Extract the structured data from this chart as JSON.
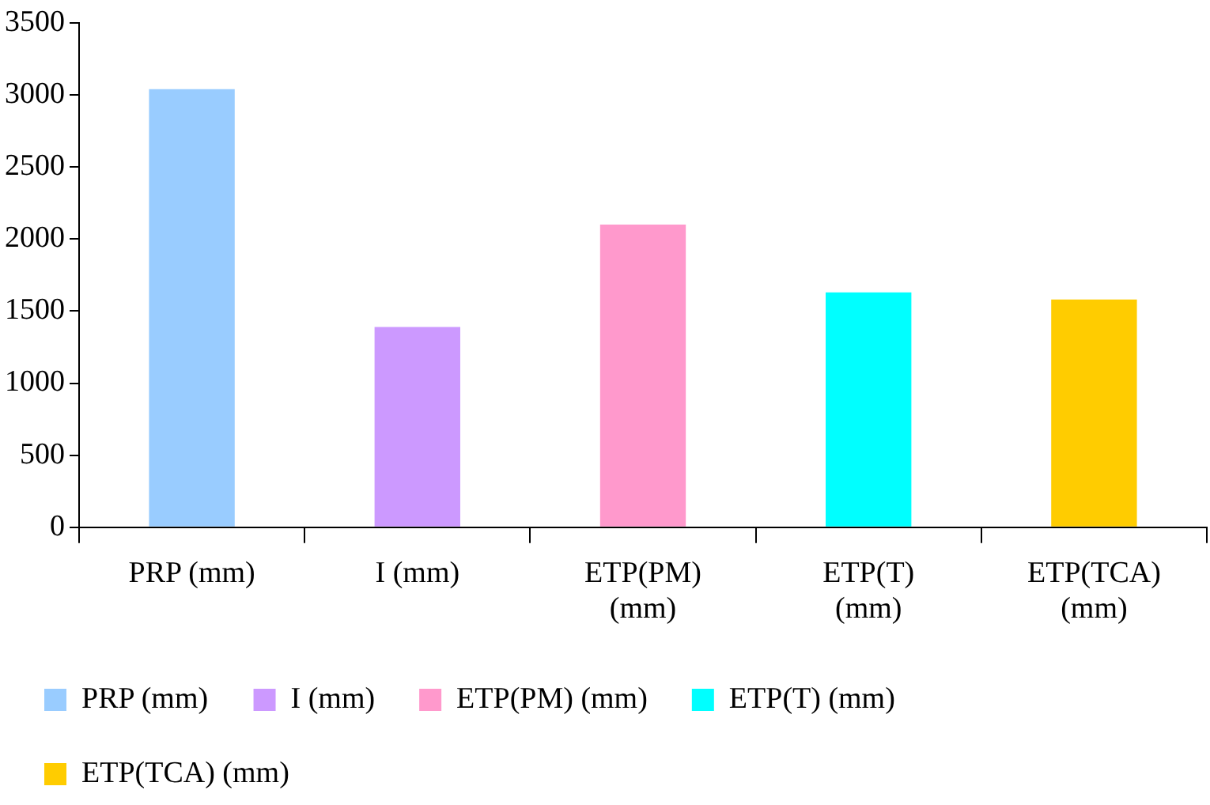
{
  "chart_data": {
    "type": "bar",
    "categories": [
      "PRP (mm)",
      "I (mm)",
      "ETP(PM) (mm)",
      "ETP(T) (mm)",
      "ETP(TCA) (mm)"
    ],
    "series": [
      {
        "name": "PRP (mm)",
        "color": "#99ccff",
        "values": [
          3040,
          null,
          null,
          null,
          null
        ]
      },
      {
        "name": "I (mm)",
        "color": "#cc99ff",
        "values": [
          null,
          1390,
          null,
          null,
          null
        ]
      },
      {
        "name": "ETP(PM) (mm)",
        "color": "#ff99cc",
        "values": [
          null,
          null,
          2100,
          null,
          null
        ]
      },
      {
        "name": "ETP(T) (mm)",
        "color": "#00ffff",
        "values": [
          null,
          null,
          null,
          1630,
          null
        ]
      },
      {
        "name": "ETP(TCA) (mm)",
        "color": "#ffcc00",
        "values": [
          null,
          null,
          null,
          null,
          1580
        ]
      }
    ],
    "ylim": [
      0,
      3500
    ],
    "yticks": [
      0,
      500,
      1000,
      1500,
      2000,
      2500,
      3000,
      3500
    ],
    "grid": false,
    "legend": "bottom"
  }
}
